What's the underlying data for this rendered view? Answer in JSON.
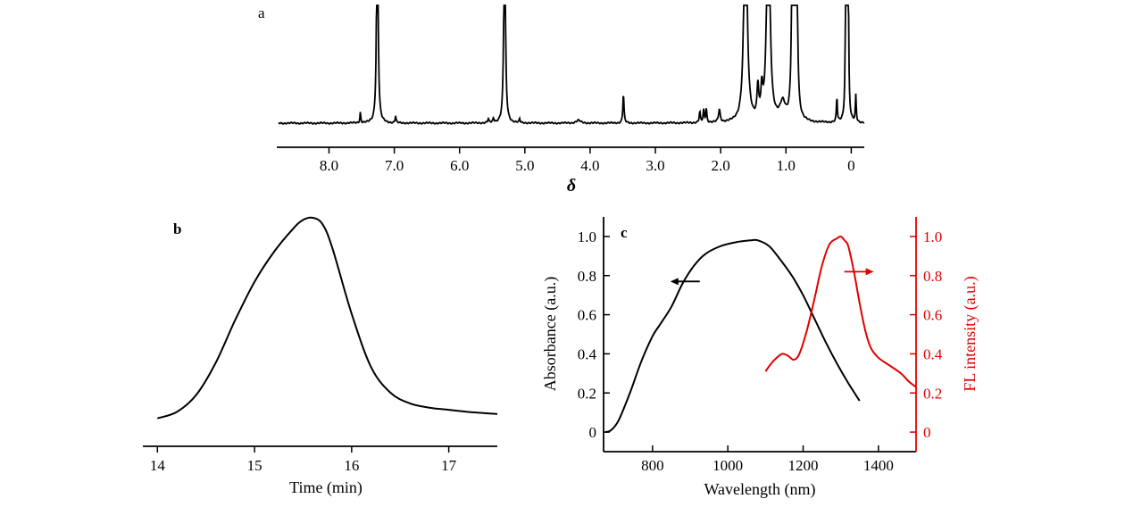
{
  "colors": {
    "black": "#000000",
    "red": "#e00000"
  },
  "chart_data": [
    {
      "id": "a",
      "type": "line",
      "panel_label": "a",
      "xlabel": "δ",
      "ylabel": "",
      "x_reversed": true,
      "xlim": [
        8.8,
        -0.2
      ],
      "xticks": [
        8.0,
        7.0,
        6.0,
        5.0,
        4.0,
        3.0,
        2.0,
        1.0,
        0
      ],
      "xtick_labels": [
        "8.0",
        "7.0",
        "6.0",
        "5.0",
        "4.0",
        "3.0",
        "2.0",
        "1.0",
        "0"
      ],
      "peaks": [
        {
          "x": 7.52,
          "h": 0.12,
          "w": 0.008
        },
        {
          "x": 7.26,
          "h": 3.0,
          "w": 0.012
        },
        {
          "x": 6.98,
          "h": 0.08,
          "w": 0.008
        },
        {
          "x": 5.56,
          "h": 0.04,
          "w": 0.01
        },
        {
          "x": 5.48,
          "h": 0.05,
          "w": 0.01
        },
        {
          "x": 5.31,
          "h": 3.0,
          "w": 0.012
        },
        {
          "x": 5.08,
          "h": 0.04,
          "w": 0.008
        },
        {
          "x": 4.18,
          "h": 0.03,
          "w": 0.04
        },
        {
          "x": 3.49,
          "h": 0.33,
          "w": 0.01
        },
        {
          "x": 2.32,
          "h": 0.12,
          "w": 0.01
        },
        {
          "x": 2.26,
          "h": 0.14,
          "w": 0.01
        },
        {
          "x": 2.22,
          "h": 0.15,
          "w": 0.01
        },
        {
          "x": 2.02,
          "h": 0.14,
          "w": 0.015
        },
        {
          "x": 1.62,
          "h": 3.0,
          "w": 0.025
        },
        {
          "x": 1.43,
          "h": 0.35,
          "w": 0.015
        },
        {
          "x": 1.37,
          "h": 0.3,
          "w": 0.015
        },
        {
          "x": 1.27,
          "h": 3.0,
          "w": 0.025
        },
        {
          "x": 1.05,
          "h": 0.2,
          "w": 0.05
        },
        {
          "x": 0.9,
          "h": 3.0,
          "w": 0.012
        },
        {
          "x": 0.86,
          "h": 3.0,
          "w": 0.012
        },
        {
          "x": 0.84,
          "h": 3.0,
          "w": 0.012
        },
        {
          "x": 0.22,
          "h": 0.28,
          "w": 0.008
        },
        {
          "x": 0.08,
          "h": 3.0,
          "w": 0.008
        },
        {
          "x": 0.05,
          "h": 3.0,
          "w": 0.008
        },
        {
          "x": -0.07,
          "h": 0.3,
          "w": 0.008
        }
      ]
    },
    {
      "id": "b",
      "type": "line",
      "panel_label": "b",
      "xlabel": "Time (min)",
      "ylabel": "",
      "xlim": [
        13.85,
        17.5
      ],
      "ylim": [
        0,
        1.08
      ],
      "xticks": [
        14,
        15,
        16,
        17
      ],
      "xtick_labels": [
        "14",
        "15",
        "16",
        "17"
      ],
      "x": [
        14.0,
        14.2,
        14.4,
        14.6,
        14.8,
        15.0,
        15.2,
        15.4,
        15.5,
        15.6,
        15.7,
        15.8,
        16.0,
        16.2,
        16.4,
        16.6,
        16.8,
        17.0,
        17.2,
        17.5
      ],
      "y": [
        0.06,
        0.09,
        0.17,
        0.32,
        0.52,
        0.7,
        0.84,
        0.95,
        0.99,
        1.0,
        0.97,
        0.86,
        0.55,
        0.3,
        0.18,
        0.13,
        0.11,
        0.1,
        0.09,
        0.08
      ]
    },
    {
      "id": "c",
      "type": "line",
      "panel_label": "c",
      "xlabel": "Wavelength (nm)",
      "ylabel": "Absorbance (a.u.)",
      "y2label": "FL intensity (a.u.)",
      "xlim": [
        670,
        1500
      ],
      "ylim": [
        -0.1,
        1.1
      ],
      "y2lim": [
        -0.1,
        1.1
      ],
      "xticks": [
        800,
        1000,
        1200,
        1400
      ],
      "xtick_labels": [
        "800",
        "1000",
        "1200",
        "1400"
      ],
      "yticks": [
        0,
        0.2,
        0.4,
        0.6,
        0.8,
        1.0
      ],
      "ytick_labels": [
        "0",
        "0.2",
        "0.4",
        "0.6",
        "0.8",
        "1.0"
      ],
      "y2tick_labels": [
        "0",
        "0.2",
        "0.4",
        "0.6",
        "0.8",
        "1.0"
      ],
      "series": [
        {
          "axis": "left",
          "color": "#000000",
          "x": [
            675,
            690,
            710,
            740,
            770,
            800,
            820,
            850,
            880,
            910,
            940,
            980,
            1020,
            1060,
            1080,
            1110,
            1140,
            1170,
            1200,
            1230,
            1260,
            1290,
            1320,
            1350
          ],
          "y": [
            0.0,
            0.01,
            0.06,
            0.2,
            0.36,
            0.49,
            0.55,
            0.64,
            0.76,
            0.85,
            0.91,
            0.95,
            0.97,
            0.98,
            0.98,
            0.95,
            0.88,
            0.8,
            0.7,
            0.58,
            0.46,
            0.35,
            0.25,
            0.16
          ]
        },
        {
          "axis": "right",
          "color": "#e00000",
          "x": [
            1100,
            1115,
            1130,
            1145,
            1160,
            1175,
            1190,
            1210,
            1230,
            1250,
            1270,
            1290,
            1300,
            1310,
            1320,
            1335,
            1350,
            1365,
            1380,
            1400,
            1430,
            1460,
            1480,
            1500
          ],
          "y": [
            0.31,
            0.35,
            0.38,
            0.4,
            0.39,
            0.37,
            0.4,
            0.52,
            0.68,
            0.85,
            0.96,
            0.99,
            1.0,
            0.98,
            0.95,
            0.82,
            0.66,
            0.52,
            0.43,
            0.38,
            0.34,
            0.3,
            0.26,
            0.23
          ]
        }
      ],
      "arrows": [
        {
          "direction": "left",
          "color": "#000000",
          "x": 890,
          "y": 0.77
        },
        {
          "direction": "right",
          "color": "#e00000",
          "x": 1345,
          "y": 0.82
        }
      ]
    }
  ]
}
